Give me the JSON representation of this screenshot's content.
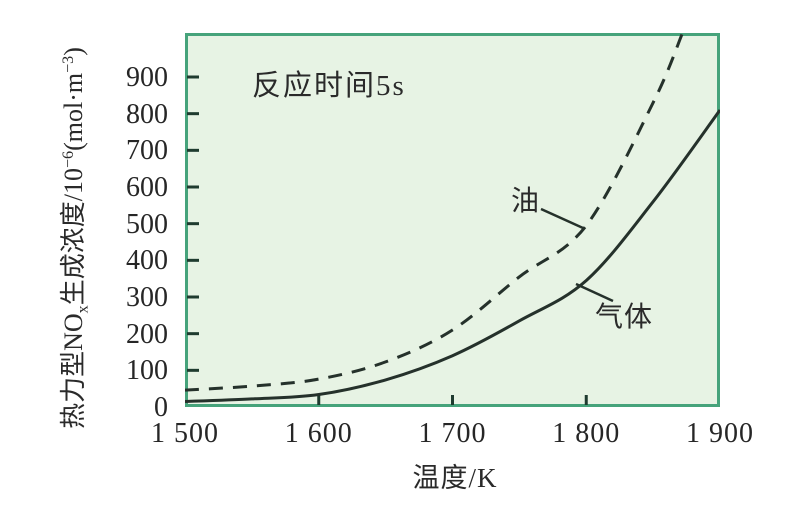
{
  "annotation": {
    "text": "反应时间5s"
  },
  "series_labels": {
    "oil": "油",
    "gas": "气体"
  },
  "x_axis": {
    "title": "温度/K",
    "ticks": [
      {
        "value": 1500,
        "label": "1 500"
      },
      {
        "value": 1600,
        "label": "1 600"
      },
      {
        "value": 1700,
        "label": "1 700"
      },
      {
        "value": 1800,
        "label": "1 800"
      },
      {
        "value": 1900,
        "label": "1 900"
      }
    ]
  },
  "y_axis": {
    "title_plain": "热力型NOx生成浓度/10⁻⁶(mol·m⁻³)",
    "title_segments": [
      {
        "t": "热力型NO"
      },
      {
        "t": "x",
        "s": "sub"
      },
      {
        "t": "生成浓度/10"
      },
      {
        "t": "−6",
        "s": "sup"
      },
      {
        "t": "(mol·m"
      },
      {
        "t": "−3",
        "s": "sup"
      },
      {
        "t": ")"
      }
    ],
    "ticks": [
      {
        "value": 0,
        "label": "0"
      },
      {
        "value": 100,
        "label": "100"
      },
      {
        "value": 200,
        "label": "200"
      },
      {
        "value": 300,
        "label": "300"
      },
      {
        "value": 400,
        "label": "400"
      },
      {
        "value": 500,
        "label": "500"
      },
      {
        "value": 600,
        "label": "600"
      },
      {
        "value": 700,
        "label": "700"
      },
      {
        "value": 800,
        "label": "800"
      },
      {
        "value": 900,
        "label": "900"
      }
    ]
  },
  "colors": {
    "plot_background": "#e7f3e4",
    "plot_border": "#46a37b",
    "curve": "#25312b",
    "tick_mark": "#1f3b2f",
    "text": "#2a2a2a"
  },
  "chart_data": {
    "type": "line",
    "title": "",
    "annotation": "反应时间5s",
    "xlabel": "温度/K",
    "ylabel": "热力型NOx生成浓度/10⁻⁶(mol·m⁻³)",
    "xlim": [
      1500,
      1900
    ],
    "ylim": [
      0,
      1020
    ],
    "x_ticks": [
      1500,
      1600,
      1700,
      1800,
      1900
    ],
    "y_ticks": [
      0,
      100,
      200,
      300,
      400,
      500,
      600,
      700,
      800,
      900
    ],
    "grid": false,
    "legend_position": "inline-annotations",
    "series": [
      {
        "name": "油",
        "line_style": "dashed",
        "points": [
          [
            1500,
            46
          ],
          [
            1550,
            57
          ],
          [
            1600,
            76
          ],
          [
            1650,
            123
          ],
          [
            1700,
            210
          ],
          [
            1750,
            355
          ],
          [
            1800,
            495
          ],
          [
            1850,
            830
          ],
          [
            1872,
            1020
          ]
        ]
      },
      {
        "name": "气体",
        "line_style": "solid",
        "points": [
          [
            1500,
            15
          ],
          [
            1550,
            22
          ],
          [
            1600,
            34
          ],
          [
            1650,
            74
          ],
          [
            1700,
            140
          ],
          [
            1750,
            235
          ],
          [
            1800,
            345
          ],
          [
            1850,
            560
          ],
          [
            1900,
            810
          ]
        ]
      }
    ]
  }
}
